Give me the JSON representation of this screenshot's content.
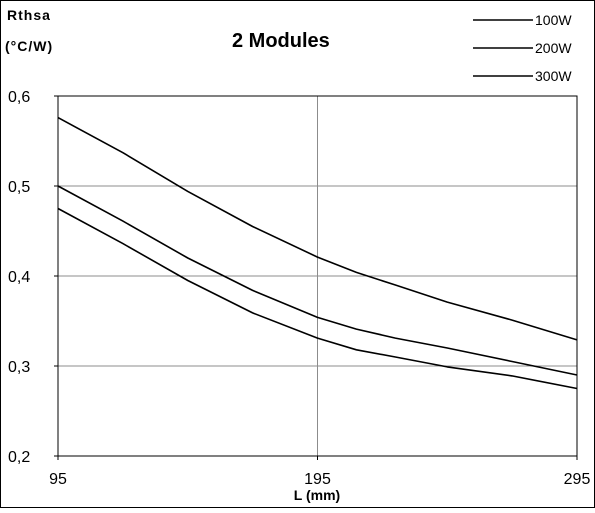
{
  "chart_data": {
    "type": "line",
    "title": "2 Modules",
    "ylabel_line1": "Rthsa",
    "ylabel_line2": "(°C/W)",
    "xlabel": "L (mm)",
    "x_ticks": [
      "95",
      "195",
      "295"
    ],
    "y_ticks": [
      "0,2",
      "0,3",
      "0,4",
      "0,5",
      "0,6"
    ],
    "xlim": [
      95,
      295
    ],
    "ylim": [
      0.2,
      0.6
    ],
    "grid": true,
    "legend_position": "top-right",
    "x": [
      95,
      120,
      145,
      170,
      195,
      210,
      225,
      245,
      270,
      295
    ],
    "series": [
      {
        "name": "100W",
        "values": [
          0.576,
          0.537,
          0.494,
          0.455,
          0.421,
          0.404,
          0.39,
          0.371,
          0.351,
          0.329
        ]
      },
      {
        "name": "200W",
        "values": [
          0.5,
          0.461,
          0.42,
          0.384,
          0.354,
          0.341,
          0.331,
          0.32,
          0.305,
          0.29
        ]
      },
      {
        "name": "300W",
        "values": [
          0.475,
          0.436,
          0.395,
          0.359,
          0.331,
          0.318,
          0.31,
          0.299,
          0.289,
          0.275
        ]
      }
    ]
  }
}
